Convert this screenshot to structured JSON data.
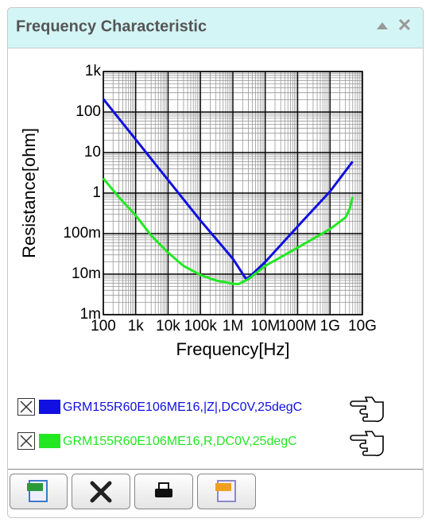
{
  "panel_title": "Frequency Characteristic",
  "chart_data": {
    "type": "line",
    "x_label": "Frequency[Hz]",
    "y_label": "Resistance[ohm]",
    "xscale": "log",
    "yscale": "log",
    "grid": true,
    "xlim": [
      100,
      10000000000
    ],
    "ylim": [
      0.001,
      1000
    ],
    "xticks": [
      100,
      {
        "value": 1000,
        "label": "1k"
      },
      {
        "value": 10000,
        "label": "10k"
      },
      {
        "value": 100000,
        "label": "100k"
      },
      {
        "value": 1000000,
        "label": "1M"
      },
      {
        "value": 10000000,
        "label": "10M"
      },
      {
        "value": 100000000,
        "label": "100M"
      },
      {
        "value": 1000000000,
        "label": "1G"
      },
      {
        "value": 10000000000,
        "label": "10G"
      }
    ],
    "yticks": [
      {
        "value": 0.001,
        "label": "1m"
      },
      {
        "value": 0.01,
        "label": "10m"
      },
      {
        "value": 0.1,
        "label": "100m"
      },
      1,
      10,
      100,
      {
        "value": 1000,
        "label": "1k"
      }
    ],
    "series": [
      {
        "name": "GRM155R60E106ME16,|Z|,DC0V,25degC",
        "color": "#1010e0",
        "x": [
          100,
          1000,
          10000,
          100000,
          1000000,
          2500000,
          3000000,
          10000000,
          100000000,
          1000000000,
          5000000000
        ],
        "values": [
          210,
          21,
          2.1,
          0.21,
          0.024,
          0.0078,
          0.008,
          0.02,
          0.15,
          1.1,
          6
        ]
      },
      {
        "name": "GRM155R60E106ME16,R,DC0V,25degC",
        "color": "#22e822",
        "x": [
          100,
          300,
          1000,
          3000,
          10000,
          30000,
          100000,
          300000,
          1000000,
          1500000,
          3000000,
          10000000,
          100000000,
          1000000000,
          3000000000,
          4000000000,
          5000000000
        ],
        "values": [
          2.3,
          0.8,
          0.28,
          0.09,
          0.034,
          0.016,
          0.0095,
          0.007,
          0.0058,
          0.0057,
          0.0075,
          0.016,
          0.045,
          0.13,
          0.25,
          0.4,
          0.8
        ]
      }
    ]
  }
}
